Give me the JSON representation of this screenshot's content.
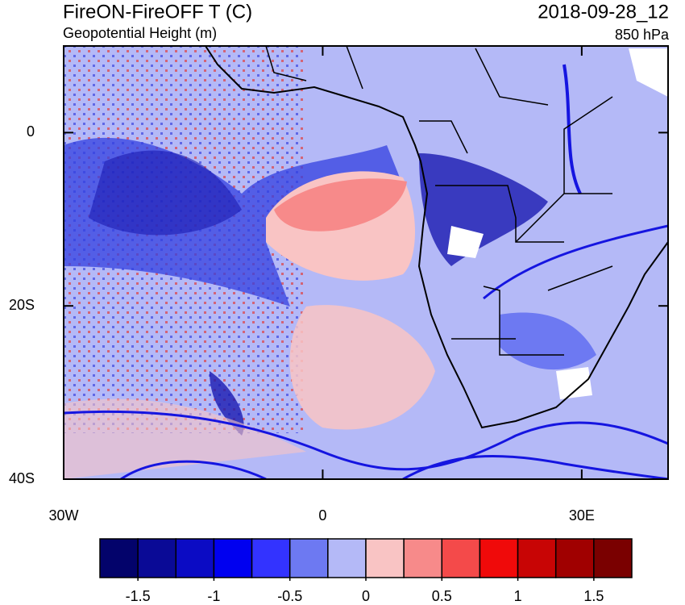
{
  "header": {
    "title": "FireON-FireOFF T (C)",
    "subtitle": "Geopotential Height (m)",
    "date": "2018-09-28_12",
    "level": "850 hPa"
  },
  "map": {
    "xlim": [
      -30,
      40
    ],
    "ylim": [
      -40,
      10
    ],
    "xticks": [
      {
        "value": -30,
        "label": "30W"
      },
      0,
      {
        "value": 30,
        "label": "30E"
      }
    ],
    "yticks": [
      0,
      {
        "value": -20,
        "label": "20S"
      },
      {
        "value": -40,
        "label": "40S"
      }
    ]
  },
  "colorbar": {
    "range": [
      -1.75,
      1.75
    ],
    "ticks": [
      -1.5,
      -1,
      -0.5,
      0,
      0.5,
      1,
      1.5
    ],
    "colors": [
      "#03036b",
      "#0a0a96",
      "#0b0bc4",
      "#0000f0",
      "#3333ff",
      "#6d79f2",
      "#b4b9f7",
      "#f9c4c4",
      "#f78a8a",
      "#f44a4a",
      "#f00a0a",
      "#c80505",
      "#a00000",
      "#7a0000"
    ]
  }
}
